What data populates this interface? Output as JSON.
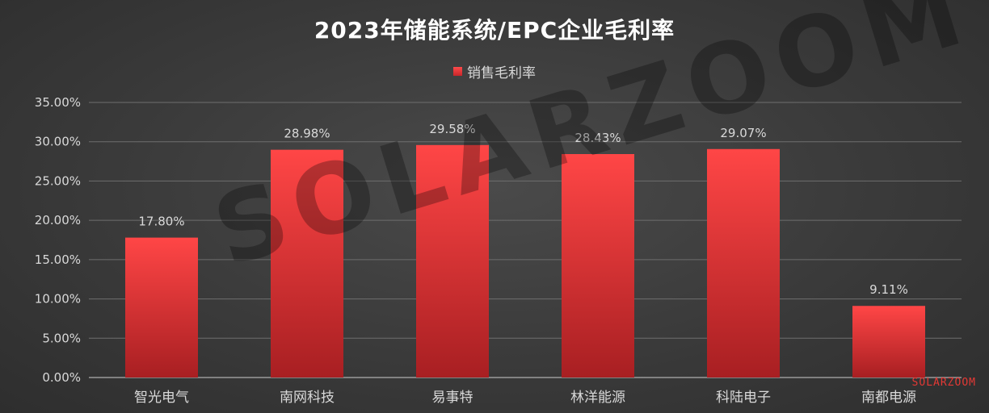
{
  "chart_data": {
    "type": "bar",
    "title": "2023年储能系统/EPC企业毛利率",
    "legend": [
      "销售毛利率"
    ],
    "legend_position": "top",
    "categories": [
      "智光电气",
      "南网科技",
      "易事特",
      "林洋能源",
      "科陆电子",
      "南都电源"
    ],
    "series": [
      {
        "name": "销售毛利率",
        "values": [
          17.8,
          28.98,
          29.58,
          28.43,
          29.07,
          9.11
        ]
      }
    ],
    "data_labels": [
      "17.80%",
      "28.98%",
      "29.58%",
      "28.43%",
      "29.07%",
      "9.11%"
    ],
    "y_ticks": [
      "0.00%",
      "5.00%",
      "10.00%",
      "15.00%",
      "20.00%",
      "25.00%",
      "30.00%",
      "35.00%"
    ],
    "ylim": [
      0,
      35
    ],
    "y_step": 5,
    "grid": true,
    "xlabel": "",
    "ylabel": ""
  },
  "colors": {
    "bar_top": "#ff4646",
    "bar_bottom": "#a81f22",
    "grid": "#6e6e6e",
    "axis_text": "#d9d9d9"
  },
  "watermark": "SOLARZOOM",
  "corner_mark": "SOLARZOOM"
}
